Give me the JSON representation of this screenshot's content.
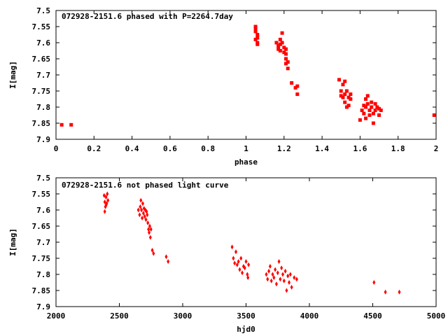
{
  "chart_data": [
    {
      "type": "scatter",
      "title": "072928-2151.6 phased with P=2264.7day",
      "xlabel": "phase",
      "ylabel": "I[mag]",
      "xlim": [
        0,
        2
      ],
      "ylim": [
        7.9,
        7.5
      ],
      "y_inverted": true,
      "xticks": [
        "0",
        "0.2",
        "0.4",
        "0.6",
        "0.8",
        "1",
        "1.2",
        "1.4",
        "1.6",
        "1.8",
        "2"
      ],
      "yticks": [
        "7.5",
        "7.55",
        "7.6",
        "7.65",
        "7.7",
        "7.75",
        "7.8",
        "7.85",
        "7.9"
      ],
      "marker": "filled-square",
      "color": "#ff0000",
      "series": [
        {
          "x": [
            0.03,
            0.08,
            1.05,
            1.05,
            1.06,
            1.05,
            1.06,
            1.05,
            1.06,
            1.06,
            1.16,
            1.17,
            1.17,
            1.18,
            1.18,
            1.18,
            1.19,
            1.19,
            1.2,
            1.2,
            1.21,
            1.21,
            1.21,
            1.21,
            1.22,
            1.24,
            1.22,
            1.26,
            1.27,
            1.27,
            1.49,
            1.5,
            1.5,
            1.51,
            1.51,
            1.52,
            1.52,
            1.53,
            1.54,
            1.54,
            1.55,
            1.55,
            1.53,
            1.52,
            1.61,
            1.62,
            1.62,
            1.63,
            1.63,
            1.64,
            1.64,
            1.65,
            1.65,
            1.66,
            1.66,
            1.67,
            1.68,
            1.68,
            1.69,
            1.7,
            1.7,
            1.71,
            1.6,
            1.63,
            1.67,
            1.99
          ],
          "y": [
            7.855,
            7.855,
            7.555,
            7.565,
            7.575,
            7.59,
            7.605,
            7.55,
            7.585,
            7.6,
            7.6,
            7.61,
            7.62,
            7.59,
            7.605,
            7.625,
            7.57,
            7.6,
            7.615,
            7.63,
            7.65,
            7.665,
            7.62,
            7.635,
            7.66,
            7.725,
            7.68,
            7.74,
            7.735,
            7.76,
            7.715,
            7.75,
            7.765,
            7.73,
            7.77,
            7.76,
            7.785,
            7.75,
            7.77,
            7.795,
            7.775,
            7.76,
            7.8,
            7.72,
            7.81,
            7.795,
            7.82,
            7.775,
            7.8,
            7.765,
            7.79,
            7.81,
            7.825,
            7.8,
            7.785,
            7.82,
            7.79,
            7.81,
            7.8,
            7.825,
            7.805,
            7.81,
            7.84,
            7.835,
            7.85,
            7.825
          ]
        }
      ]
    },
    {
      "type": "scatter",
      "title": "072928-2151.6 not phased light curve",
      "xlabel": "hjd0",
      "ylabel": "I[mag]",
      "xlim": [
        2000,
        5000
      ],
      "ylim": [
        7.9,
        7.5
      ],
      "y_inverted": true,
      "xticks": [
        "2000",
        "2500",
        "3000",
        "3500",
        "4000",
        "4500",
        "5000"
      ],
      "yticks": [
        "7.5",
        "7.55",
        "7.6",
        "7.65",
        "7.7",
        "7.75",
        "7.8",
        "7.85",
        "7.9"
      ],
      "marker": "filled-diamond",
      "color": "#ff0000",
      "series": [
        {
          "x": [
            2380,
            2385,
            2390,
            2395,
            2400,
            2405,
            2410,
            2385,
            2395,
            2650,
            2660,
            2665,
            2670,
            2675,
            2680,
            2685,
            2690,
            2695,
            2700,
            2705,
            2710,
            2715,
            2720,
            2725,
            2730,
            2735,
            2740,
            2745,
            2750,
            2760,
            2770,
            2870,
            2885,
            3390,
            3400,
            3410,
            3420,
            3430,
            3440,
            3450,
            3460,
            3470,
            3480,
            3490,
            3500,
            3510,
            3515,
            3520,
            3660,
            3670,
            3680,
            3690,
            3700,
            3710,
            3720,
            3730,
            3740,
            3750,
            3760,
            3770,
            3780,
            3790,
            3800,
            3810,
            3820,
            3830,
            3840,
            3850,
            3860,
            3880,
            3900,
            4510,
            4600,
            4710
          ],
          "y": [
            7.555,
            7.575,
            7.59,
            7.56,
            7.58,
            7.55,
            7.57,
            7.605,
            7.585,
            7.6,
            7.615,
            7.59,
            7.57,
            7.6,
            7.625,
            7.58,
            7.61,
            7.595,
            7.62,
            7.6,
            7.63,
            7.605,
            7.615,
            7.64,
            7.66,
            7.67,
            7.65,
            7.685,
            7.66,
            7.725,
            7.735,
            7.745,
            7.76,
            7.715,
            7.75,
            7.765,
            7.73,
            7.77,
            7.76,
            7.785,
            7.75,
            7.795,
            7.775,
            7.78,
            7.76,
            7.8,
            7.81,
            7.77,
            7.8,
            7.815,
            7.79,
            7.775,
            7.82,
            7.8,
            7.81,
            7.785,
            7.83,
            7.795,
            7.76,
            7.815,
            7.78,
            7.8,
            7.82,
            7.79,
            7.85,
            7.805,
            7.825,
            7.8,
            7.84,
            7.81,
            7.815,
            7.825,
            7.855,
            7.855
          ]
        }
      ]
    }
  ]
}
